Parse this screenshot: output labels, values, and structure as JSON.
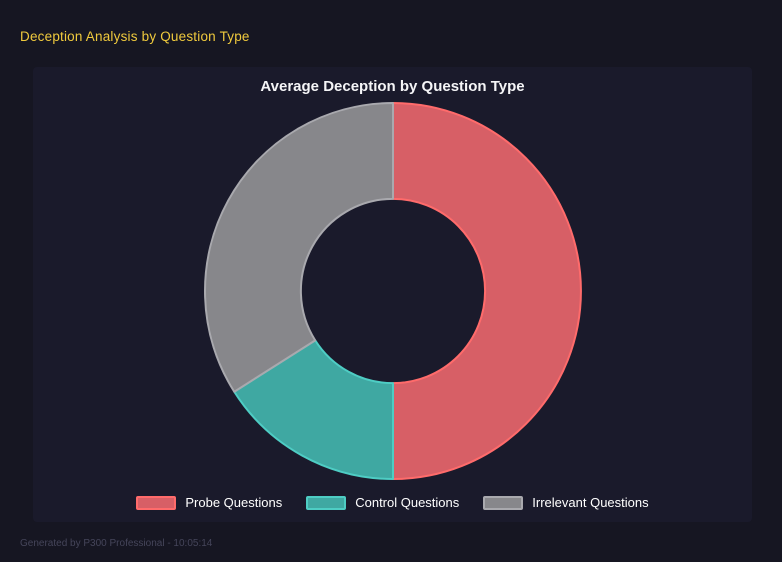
{
  "page": {
    "title": "Deception Analysis by Question Type",
    "footer": "Generated by P300 Professional - 10:05:14"
  },
  "theme": {
    "page_bg": "#161622",
    "panel_bg": "#1a1a2b",
    "page_title_color": "#f0ca3d",
    "chart_title_color": "#f5f5f7",
    "legend_text_color": "#ffffff",
    "footer_color": "#45455a"
  },
  "chart_data": {
    "type": "pie",
    "subtype": "donut",
    "title": "Average Deception by Question Type",
    "categories": [
      "Probe Questions",
      "Control Questions",
      "Irrelevant Questions"
    ],
    "values": [
      50,
      16,
      34
    ],
    "values_unit": "percent of total, estimated from arc angles",
    "segment_colors": [
      "#d75f66",
      "#3fa8a2",
      "#87878b"
    ],
    "segment_border_colors": [
      "#ff6b6b",
      "#4ecdc4",
      "#a9a9ae"
    ],
    "segment_border_width": 2,
    "start_angle_deg": 0,
    "direction": "clockwise",
    "cutout_ratio": 0.49,
    "legend_position": "bottom",
    "grid": false
  }
}
